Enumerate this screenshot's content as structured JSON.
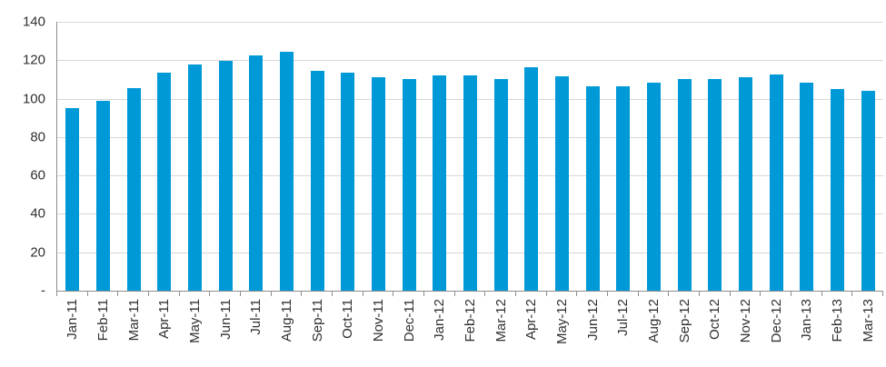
{
  "chart_data": {
    "type": "bar",
    "title": "",
    "xlabel": "",
    "ylabel": "",
    "categories": [
      "Jan-11",
      "Feb-11",
      "Mar-11",
      "Apr-11",
      "May-11",
      "Jun-11",
      "Jul-11",
      "Aug-11",
      "Sep-11",
      "Oct-11",
      "Nov-11",
      "Dec-11",
      "Jan-12",
      "Feb-12",
      "Mar-12",
      "Apr-12",
      "May-12",
      "Jun-12",
      "Jul-12",
      "Aug-12",
      "Sep-12",
      "Oct-12",
      "Nov-12",
      "Dec-12",
      "Jan-13",
      "Feb-13",
      "Mar-13"
    ],
    "values": [
      95,
      99,
      105.5,
      113.5,
      118,
      119.5,
      122.5,
      124.5,
      114.5,
      113.5,
      111,
      110,
      112,
      112,
      110,
      116.5,
      111.5,
      106.5,
      106.5,
      108.5,
      110,
      110,
      111,
      112.5,
      108.5,
      105,
      104
    ],
    "ylim": [
      0,
      140
    ],
    "y_ticks": [
      140,
      120,
      100,
      80,
      60,
      40,
      20,
      0
    ],
    "y_tick_labels": [
      "140",
      "120",
      "100",
      "80",
      "60",
      "40",
      "20",
      "-"
    ],
    "grid": true,
    "legend_position": "none",
    "colors": {
      "bar": "#0099d8",
      "gridline": "#d6d6d6",
      "axis": "#8e8e8e",
      "text": "#303030"
    }
  }
}
